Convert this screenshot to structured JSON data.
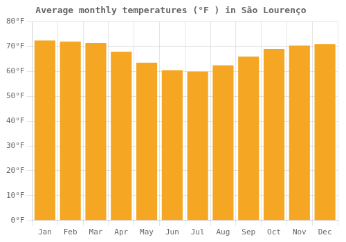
{
  "chart_data": {
    "type": "bar",
    "title": "Average monthly temperatures (°F ) in São Lourenço",
    "categories": [
      "Jan",
      "Feb",
      "Mar",
      "Apr",
      "May",
      "Jun",
      "Jul",
      "Aug",
      "Sep",
      "Oct",
      "Nov",
      "Dec"
    ],
    "values": [
      72.5,
      72.0,
      71.5,
      68.0,
      63.5,
      60.5,
      60.0,
      62.5,
      66.0,
      69.0,
      70.5,
      71.0
    ],
    "color": "#F5A623",
    "ylim": [
      0,
      80
    ],
    "yticks": [
      {
        "value": 0,
        "label": "0°F"
      },
      {
        "value": 10,
        "label": "10°F"
      },
      {
        "value": 20,
        "label": "20°F"
      },
      {
        "value": 30,
        "label": "30°F"
      },
      {
        "value": 40,
        "label": "40°F"
      },
      {
        "value": 50,
        "label": "50°F"
      },
      {
        "value": 60,
        "label": "60°F"
      },
      {
        "value": 70,
        "label": "70°F"
      },
      {
        "value": 80,
        "label": "80°F"
      }
    ],
    "grid": true
  }
}
